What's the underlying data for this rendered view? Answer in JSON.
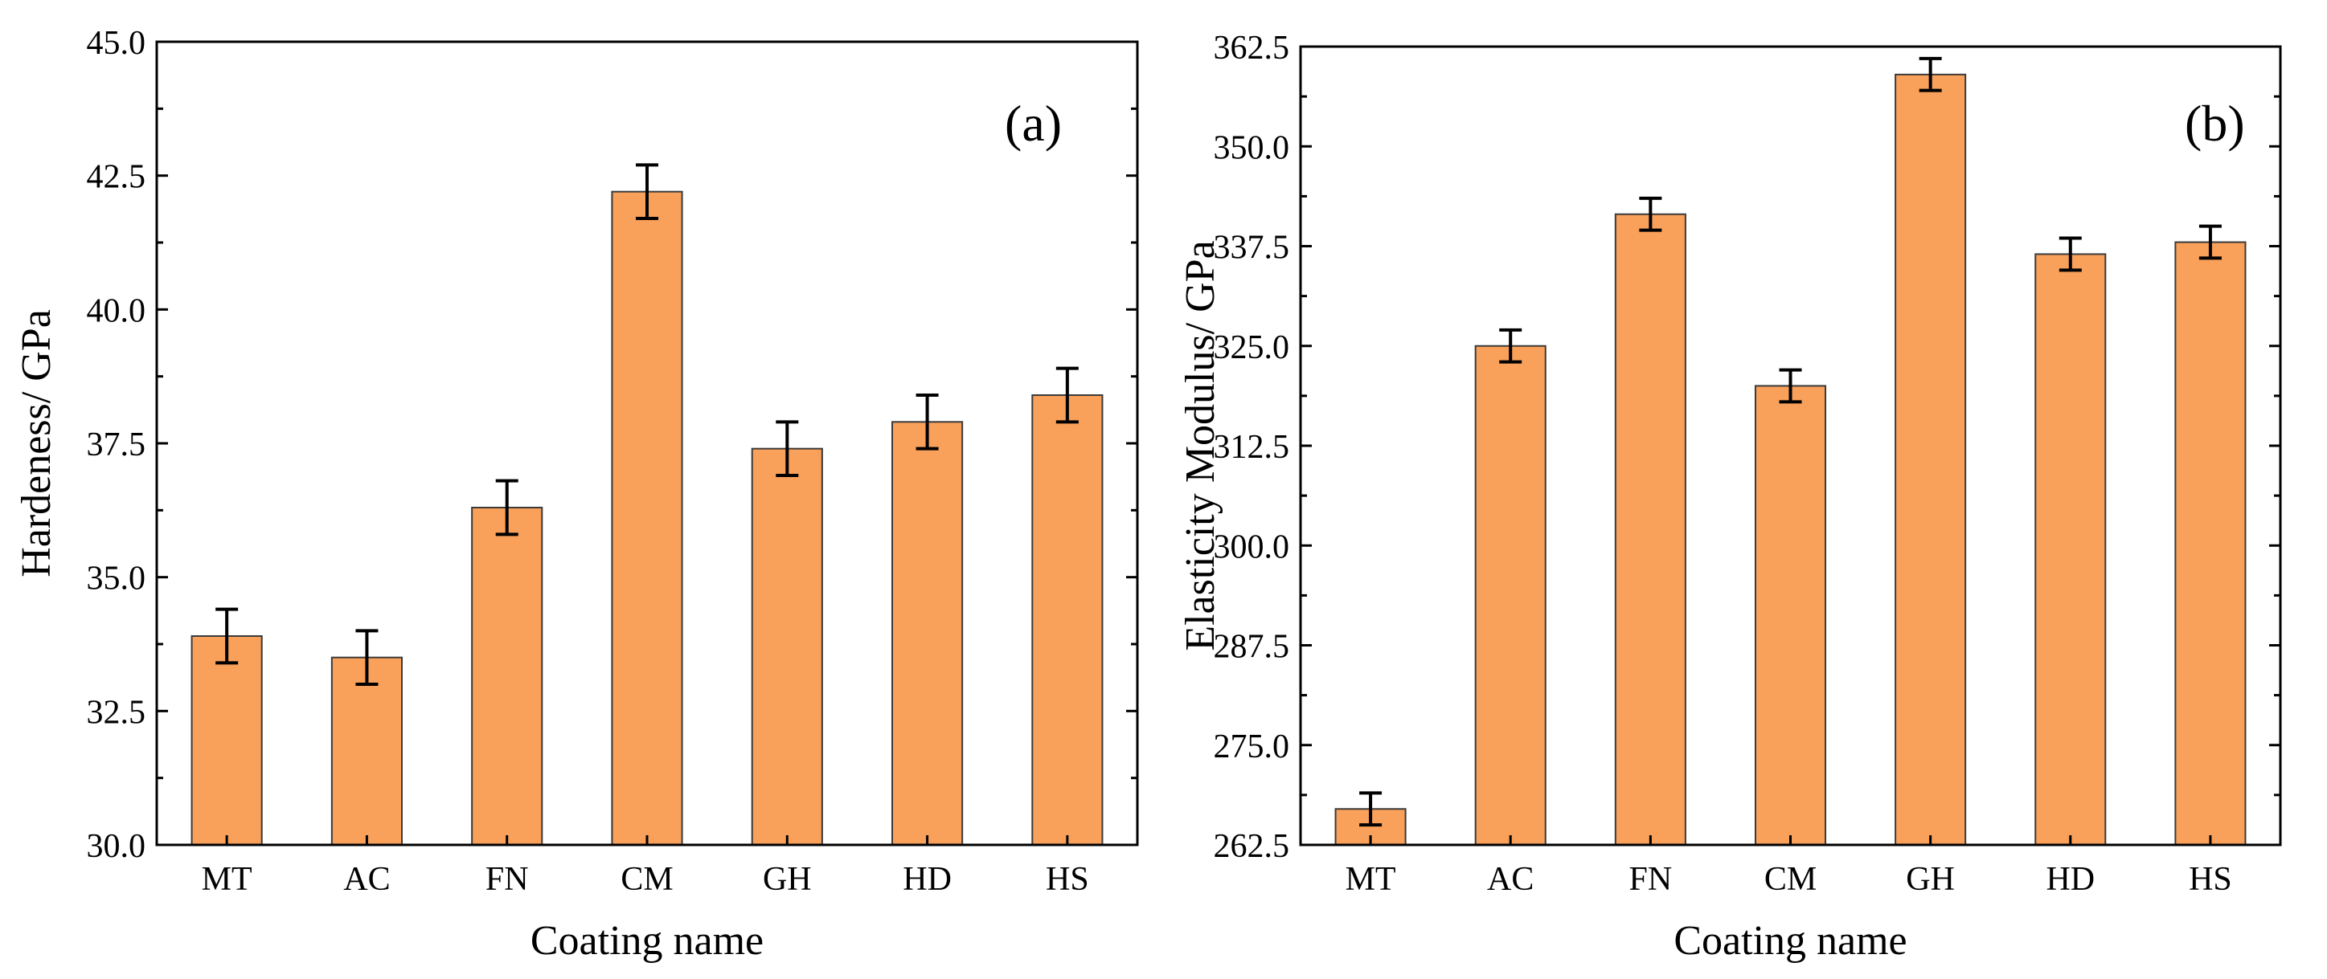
{
  "colors": {
    "bar_fill": "#f9a05a",
    "bar_stroke": "#3a3a3a",
    "axis": "#000000"
  },
  "chart_data": [
    {
      "type": "bar",
      "panel_label": "(a)",
      "title": "",
      "xlabel": "Coating name",
      "ylabel": "Hardeness/ GPa",
      "categories": [
        "MT",
        "AC",
        "FN",
        "CM",
        "GH",
        "HD",
        "HS"
      ],
      "values": [
        33.9,
        33.5,
        36.3,
        42.2,
        37.4,
        37.9,
        38.4
      ],
      "errors": [
        0.5,
        0.5,
        0.5,
        0.5,
        0.5,
        0.5,
        0.5
      ],
      "ylim": [
        30.0,
        45.0
      ],
      "yticks": [
        "30.0",
        "32.5",
        "35.0",
        "37.5",
        "40.0",
        "42.5",
        "45.0"
      ],
      "ytick_values": [
        30.0,
        32.5,
        35.0,
        37.5,
        40.0,
        42.5,
        45.0
      ],
      "grid": false
    },
    {
      "type": "bar",
      "panel_label": "(b)",
      "title": "",
      "xlabel": "Coating name",
      "ylabel": "Elasticity Modulus/ GPa",
      "categories": [
        "MT",
        "AC",
        "FN",
        "CM",
        "GH",
        "HD",
        "HS"
      ],
      "values": [
        267.0,
        325.0,
        341.5,
        320.0,
        359.0,
        336.5,
        338.0
      ],
      "errors": [
        2.0,
        2.0,
        2.0,
        2.0,
        2.0,
        2.0,
        2.0
      ],
      "ylim": [
        262.5,
        362.5
      ],
      "yticks": [
        "262.5",
        "275.0",
        "287.5",
        "300.0",
        "312.5",
        "325.0",
        "337.5",
        "350.0",
        "362.5"
      ],
      "ytick_values": [
        262.5,
        275.0,
        287.5,
        300.0,
        312.5,
        325.0,
        337.5,
        350.0,
        362.5
      ],
      "grid": false
    }
  ]
}
